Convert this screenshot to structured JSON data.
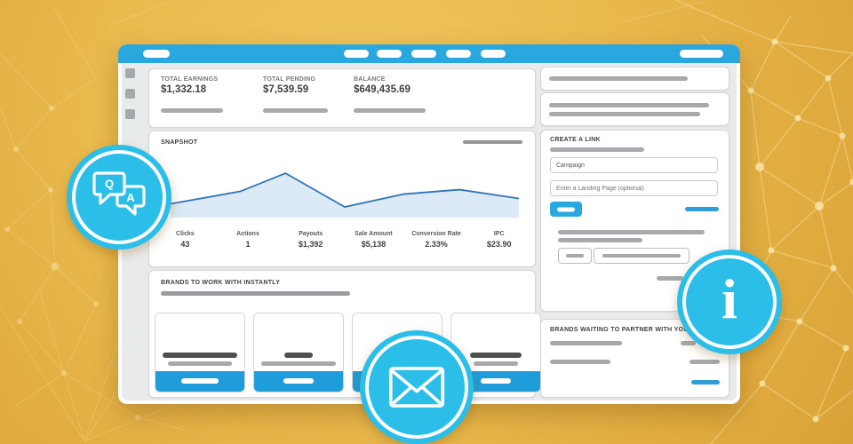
{
  "colors": {
    "topbar_blue": "#29a8e0",
    "badge_cyan": "#2abee9",
    "tile_footer_blue": "#1f9dda",
    "link_blue": "#2d9ed9",
    "background_gold": "#e9ba4e"
  },
  "stats": {
    "items": [
      {
        "label": "TOTAL EARNINGS",
        "value": "$1,332.18"
      },
      {
        "label": "TOTAL PENDING",
        "value": "$7,539.59"
      },
      {
        "label": "BALANCE",
        "value": "$649,435.69"
      }
    ]
  },
  "snapshot": {
    "title": "SNAPSHOT",
    "metrics": [
      {
        "label": "Clicks",
        "value": "43"
      },
      {
        "label": "Actions",
        "value": "1"
      },
      {
        "label": "Payouts",
        "value": "$1,392"
      },
      {
        "label": "Sale Amount",
        "value": "$5,138"
      },
      {
        "label": "Conversion Rate",
        "value": "2.33%"
      },
      {
        "label": "IPC",
        "value": "$23.90"
      }
    ]
  },
  "chart_data": {
    "type": "area",
    "title": "SNAPSHOT",
    "x_pct": [
      0,
      20,
      33,
      50,
      67,
      83,
      100
    ],
    "y_pct": [
      31,
      59,
      100,
      24,
      53,
      63,
      43
    ],
    "note": "unlabeled trend sparkline; y_pct is height relative to peak",
    "line_color": "#2e74b8",
    "fill_color": "#dce9f6",
    "grid": false,
    "legend": false
  },
  "brands_instant": {
    "title": "BRANDS TO WORK WITH INSTANTLY"
  },
  "create_link": {
    "title": "CREATE A LINK",
    "campaign_value": "Campaign",
    "landing_page_placeholder": "Enter a Landing Page (optional)"
  },
  "brands_waiting": {
    "title": "BRANDS WAITING TO PARTNER WITH YOU"
  },
  "icons": {
    "qa": "qa-chat-bubbles-icon",
    "mail": "envelope-icon",
    "info": "info-icon"
  }
}
